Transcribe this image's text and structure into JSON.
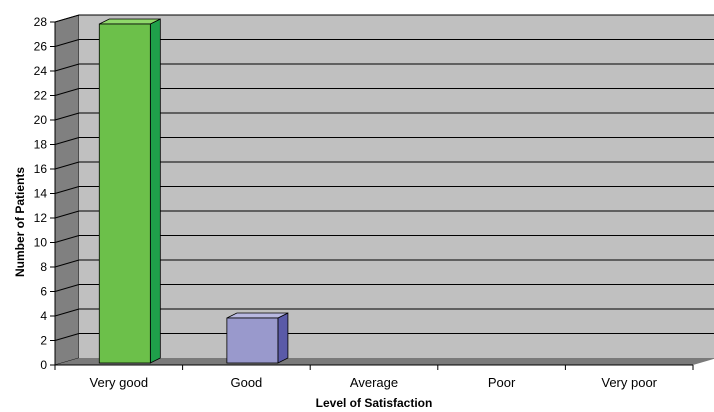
{
  "chart_data": {
    "type": "bar",
    "categories": [
      "Very good",
      "Good",
      "Average",
      "Poor",
      "Very poor"
    ],
    "values": [
      28,
      4,
      0,
      0,
      0
    ],
    "xlabel": "Level of Satisfaction",
    "ylabel": "Number of Patients",
    "ylim": [
      0,
      28
    ],
    "yticks": [
      "0",
      "2",
      "4",
      "6",
      "8",
      "10",
      "12",
      "14",
      "16",
      "18",
      "20",
      "22",
      "24",
      "26",
      "28"
    ],
    "grid": true,
    "legend": "none",
    "colors": {
      "bars": [
        "#6cc04a",
        "#9999cc"
      ],
      "bar_sides": [
        "#1fa04a",
        "#5a5aa8"
      ],
      "bar_tops": [
        "#8fd86a",
        "#b8b8e0"
      ],
      "plot_wall": "#c0c0c0",
      "left_wall": "#808080",
      "floor": "#7a7a7a",
      "gridline": "#000000"
    }
  }
}
